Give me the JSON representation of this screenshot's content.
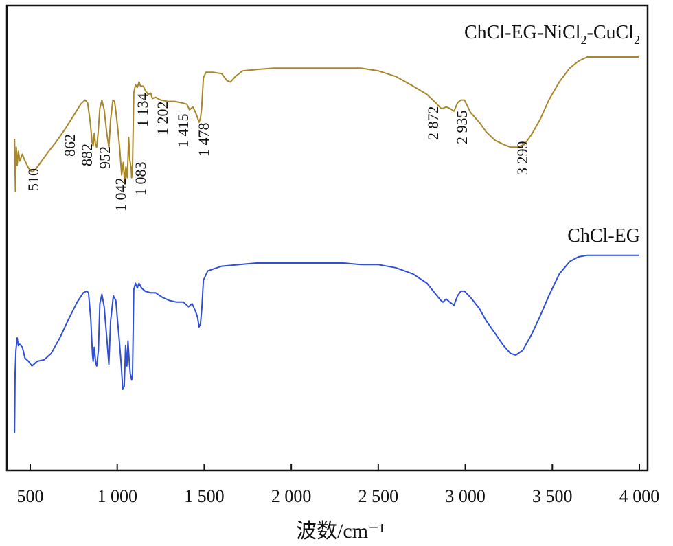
{
  "chart_data": {
    "type": "line",
    "xlabel": "波数/cm⁻¹",
    "ylabel": "",
    "xlim": [
      400,
      4000
    ],
    "xticks": [
      500,
      1000,
      1500,
      2000,
      2500,
      3000,
      3500,
      4000
    ],
    "xtick_labels": [
      "500",
      "1 000",
      "1 500",
      "2 000",
      "2 500",
      "3 000",
      "3 500",
      "4 000"
    ],
    "grid": false,
    "colors": {
      "ChCl-EG-NiCl2-CuCl2": "#a8862a",
      "ChCl-EG": "#2e4fd6"
    },
    "series": [
      {
        "name": "ChCl-EG-NiCl₂-CuCl₂",
        "label_text": "ChCl-EG-NiCl",
        "label_sub1": "2",
        "label_mid": "-CuCl",
        "label_sub2": "2",
        "color": "#a8862a",
        "points": [
          [
            410,
            0.41
          ],
          [
            415,
            0.03
          ],
          [
            420,
            0.35
          ],
          [
            425,
            0.22
          ],
          [
            432,
            0.32
          ],
          [
            440,
            0.25
          ],
          [
            455,
            0.3
          ],
          [
            470,
            0.25
          ],
          [
            490,
            0.2
          ],
          [
            510,
            0.17
          ],
          [
            530,
            0.19
          ],
          [
            560,
            0.24
          ],
          [
            600,
            0.31
          ],
          [
            650,
            0.39
          ],
          [
            700,
            0.48
          ],
          [
            750,
            0.58
          ],
          [
            790,
            0.66
          ],
          [
            815,
            0.69
          ],
          [
            830,
            0.67
          ],
          [
            845,
            0.53
          ],
          [
            855,
            0.39
          ],
          [
            862,
            0.36
          ],
          [
            868,
            0.45
          ],
          [
            875,
            0.37
          ],
          [
            882,
            0.35
          ],
          [
            890,
            0.45
          ],
          [
            900,
            0.63
          ],
          [
            912,
            0.69
          ],
          [
            925,
            0.62
          ],
          [
            940,
            0.45
          ],
          [
            952,
            0.35
          ],
          [
            962,
            0.55
          ],
          [
            975,
            0.69
          ],
          [
            985,
            0.68
          ],
          [
            995,
            0.58
          ],
          [
            1005,
            0.46
          ],
          [
            1015,
            0.33
          ],
          [
            1025,
            0.15
          ],
          [
            1035,
            0.24
          ],
          [
            1042,
            0.1
          ],
          [
            1050,
            0.21
          ],
          [
            1058,
            0.13
          ],
          [
            1066,
            0.42
          ],
          [
            1072,
            0.26
          ],
          [
            1080,
            0.2
          ],
          [
            1083,
            0.13
          ],
          [
            1088,
            0.22
          ],
          [
            1095,
            0.74
          ],
          [
            1105,
            0.8
          ],
          [
            1115,
            0.78
          ],
          [
            1125,
            0.82
          ],
          [
            1134,
            0.79
          ],
          [
            1150,
            0.79
          ],
          [
            1165,
            0.75
          ],
          [
            1180,
            0.73
          ],
          [
            1192,
            0.74
          ],
          [
            1202,
            0.7
          ],
          [
            1220,
            0.71
          ],
          [
            1250,
            0.69
          ],
          [
            1290,
            0.68
          ],
          [
            1330,
            0.68
          ],
          [
            1370,
            0.67
          ],
          [
            1400,
            0.66
          ],
          [
            1415,
            0.62
          ],
          [
            1435,
            0.64
          ],
          [
            1450,
            0.6
          ],
          [
            1462,
            0.56
          ],
          [
            1470,
            0.53
          ],
          [
            1478,
            0.56
          ],
          [
            1485,
            0.63
          ],
          [
            1495,
            0.85
          ],
          [
            1510,
            0.89
          ],
          [
            1550,
            0.89
          ],
          [
            1600,
            0.88
          ],
          [
            1630,
            0.83
          ],
          [
            1650,
            0.82
          ],
          [
            1680,
            0.86
          ],
          [
            1720,
            0.9
          ],
          [
            1800,
            0.91
          ],
          [
            1900,
            0.92
          ],
          [
            2000,
            0.92
          ],
          [
            2100,
            0.92
          ],
          [
            2200,
            0.92
          ],
          [
            2300,
            0.92
          ],
          [
            2400,
            0.92
          ],
          [
            2500,
            0.9
          ],
          [
            2600,
            0.86
          ],
          [
            2700,
            0.79
          ],
          [
            2780,
            0.73
          ],
          [
            2830,
            0.67
          ],
          [
            2860,
            0.63
          ],
          [
            2872,
            0.63
          ],
          [
            2890,
            0.64
          ],
          [
            2910,
            0.63
          ],
          [
            2935,
            0.61
          ],
          [
            2955,
            0.67
          ],
          [
            2975,
            0.69
          ],
          [
            2995,
            0.69
          ],
          [
            3030,
            0.6
          ],
          [
            3080,
            0.53
          ],
          [
            3120,
            0.46
          ],
          [
            3170,
            0.4
          ],
          [
            3220,
            0.37
          ],
          [
            3260,
            0.35
          ],
          [
            3299,
            0.35
          ],
          [
            3340,
            0.37
          ],
          [
            3380,
            0.44
          ],
          [
            3430,
            0.55
          ],
          [
            3480,
            0.69
          ],
          [
            3540,
            0.82
          ],
          [
            3600,
            0.92
          ],
          [
            3650,
            0.97
          ],
          [
            3700,
            1.0
          ],
          [
            3800,
            1.0
          ],
          [
            4000,
            1.0
          ]
        ]
      },
      {
        "name": "ChCl-EG",
        "label_text": "ChCl-EG",
        "color": "#2e4fd6",
        "points": [
          [
            410,
            0.02
          ],
          [
            413,
            0.4
          ],
          [
            418,
            0.55
          ],
          [
            425,
            0.63
          ],
          [
            432,
            0.58
          ],
          [
            440,
            0.59
          ],
          [
            455,
            0.57
          ],
          [
            470,
            0.5
          ],
          [
            490,
            0.48
          ],
          [
            510,
            0.45
          ],
          [
            540,
            0.48
          ],
          [
            580,
            0.49
          ],
          [
            620,
            0.53
          ],
          [
            670,
            0.63
          ],
          [
            720,
            0.75
          ],
          [
            770,
            0.86
          ],
          [
            805,
            0.92
          ],
          [
            825,
            0.93
          ],
          [
            835,
            0.92
          ],
          [
            848,
            0.75
          ],
          [
            858,
            0.52
          ],
          [
            862,
            0.48
          ],
          [
            868,
            0.57
          ],
          [
            876,
            0.47
          ],
          [
            882,
            0.45
          ],
          [
            892,
            0.55
          ],
          [
            900,
            0.85
          ],
          [
            912,
            0.91
          ],
          [
            925,
            0.83
          ],
          [
            940,
            0.63
          ],
          [
            952,
            0.46
          ],
          [
            962,
            0.74
          ],
          [
            978,
            0.9
          ],
          [
            992,
            0.87
          ],
          [
            1002,
            0.74
          ],
          [
            1012,
            0.61
          ],
          [
            1022,
            0.47
          ],
          [
            1032,
            0.3
          ],
          [
            1040,
            0.32
          ],
          [
            1048,
            0.58
          ],
          [
            1055,
            0.45
          ],
          [
            1062,
            0.61
          ],
          [
            1068,
            0.5
          ],
          [
            1075,
            0.4
          ],
          [
            1083,
            0.36
          ],
          [
            1088,
            0.4
          ],
          [
            1095,
            0.94
          ],
          [
            1105,
            0.98
          ],
          [
            1115,
            0.95
          ],
          [
            1125,
            0.98
          ],
          [
            1140,
            0.95
          ],
          [
            1160,
            0.93
          ],
          [
            1190,
            0.92
          ],
          [
            1220,
            0.92
          ],
          [
            1260,
            0.89
          ],
          [
            1300,
            0.87
          ],
          [
            1340,
            0.86
          ],
          [
            1380,
            0.86
          ],
          [
            1410,
            0.83
          ],
          [
            1430,
            0.85
          ],
          [
            1450,
            0.8
          ],
          [
            1462,
            0.76
          ],
          [
            1470,
            0.7
          ],
          [
            1478,
            0.72
          ],
          [
            1486,
            0.82
          ],
          [
            1495,
            1.0
          ],
          [
            1520,
            1.06
          ],
          [
            1600,
            1.09
          ],
          [
            1700,
            1.1
          ],
          [
            1800,
            1.11
          ],
          [
            1900,
            1.11
          ],
          [
            2000,
            1.11
          ],
          [
            2100,
            1.11
          ],
          [
            2200,
            1.11
          ],
          [
            2300,
            1.11
          ],
          [
            2400,
            1.1
          ],
          [
            2500,
            1.1
          ],
          [
            2600,
            1.08
          ],
          [
            2700,
            1.04
          ],
          [
            2780,
            0.98
          ],
          [
            2830,
            0.91
          ],
          [
            2860,
            0.87
          ],
          [
            2872,
            0.86
          ],
          [
            2890,
            0.88
          ],
          [
            2910,
            0.86
          ],
          [
            2935,
            0.84
          ],
          [
            2955,
            0.9
          ],
          [
            2975,
            0.93
          ],
          [
            2995,
            0.93
          ],
          [
            3030,
            0.89
          ],
          [
            3080,
            0.82
          ],
          [
            3120,
            0.74
          ],
          [
            3170,
            0.66
          ],
          [
            3220,
            0.58
          ],
          [
            3260,
            0.53
          ],
          [
            3290,
            0.52
          ],
          [
            3330,
            0.55
          ],
          [
            3380,
            0.65
          ],
          [
            3430,
            0.77
          ],
          [
            3480,
            0.9
          ],
          [
            3540,
            1.04
          ],
          [
            3600,
            1.12
          ],
          [
            3650,
            1.15
          ],
          [
            3700,
            1.16
          ],
          [
            3800,
            1.16
          ],
          [
            4000,
            1.16
          ]
        ]
      }
    ],
    "annotations": [
      {
        "text": "510",
        "x": 510,
        "series": 0
      },
      {
        "text": "862",
        "x": 862,
        "series": 0
      },
      {
        "text": "882",
        "x": 882,
        "series": 0
      },
      {
        "text": "952",
        "x": 952,
        "series": 0
      },
      {
        "text": "1 042",
        "x": 1042,
        "series": 0
      },
      {
        "text": "1 083",
        "x": 1083,
        "series": 0
      },
      {
        "text": "1 134",
        "x": 1134,
        "series": 0
      },
      {
        "text": "1 202",
        "x": 1202,
        "series": 0
      },
      {
        "text": "1 415",
        "x": 1415,
        "series": 0
      },
      {
        "text": "1 478",
        "x": 1478,
        "series": 0
      },
      {
        "text": "2 872",
        "x": 2872,
        "series": 0
      },
      {
        "text": "2 935",
        "x": 2935,
        "series": 0
      },
      {
        "text": "3 299",
        "x": 3299,
        "series": 0
      }
    ]
  }
}
